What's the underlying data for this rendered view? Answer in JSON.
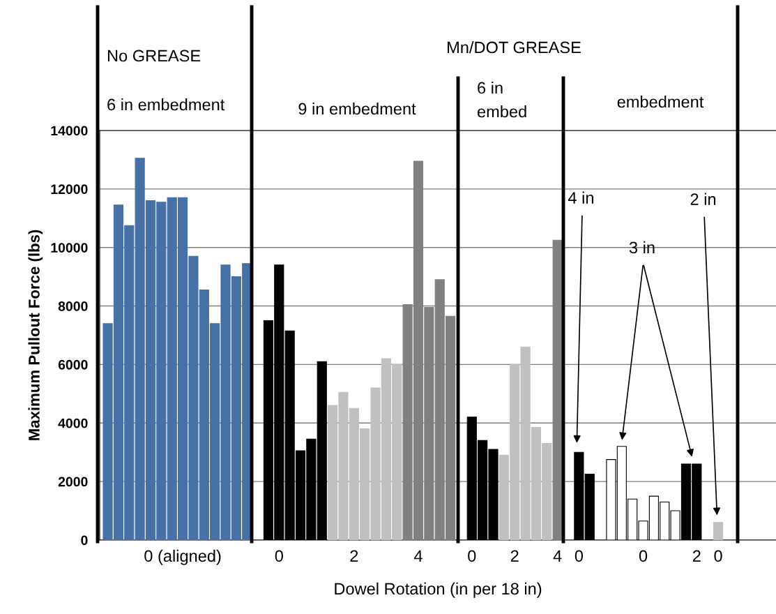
{
  "chart_data": {
    "type": "bar",
    "xlabel": "Dowel Rotation (in per 18 in)",
    "ylabel": "Maximum Pullout Force (lbs)",
    "categories": [
      null,
      null,
      null,
      null,
      null,
      null,
      null,
      "0 (aligned)",
      null,
      null,
      null,
      null,
      null,
      null,
      null,
      null,
      "0",
      null,
      null,
      null,
      null,
      null,
      null,
      "2",
      null,
      null,
      null,
      null,
      null,
      "4",
      null,
      null,
      null,
      null,
      "0",
      null,
      null,
      null,
      "2",
      null,
      null,
      null,
      "4",
      null,
      "0",
      null,
      null,
      null,
      null,
      null,
      "0",
      null,
      null,
      null,
      null,
      "2",
      null,
      "0",
      null,
      null,
      null,
      null,
      null
    ],
    "values": [
      7400,
      11450,
      10750,
      13050,
      11600,
      11550,
      11700,
      11700,
      9700,
      8550,
      7400,
      9400,
      9000,
      9450,
      null,
      7500,
      9400,
      7150,
      3050,
      3450,
      6100,
      4600,
      5050,
      4500,
      3800,
      5200,
      6200,
      6000,
      8050,
      12950,
      7950,
      8900,
      7650,
      null,
      4200,
      3400,
      3100,
      2900,
      6000,
      6600,
      3850,
      3300,
      10250,
      null,
      3000,
      2250,
      null,
      2750,
      3200,
      1400,
      650,
      1500,
      1300,
      1000,
      2600,
      2600,
      null,
      600,
      null,
      null,
      null,
      null,
      null
    ],
    "colors": [
      "#4671a6",
      "#4671a6",
      "#4671a6",
      "#4671a6",
      "#4671a6",
      "#4671a6",
      "#4671a6",
      "#4671a6",
      "#4671a6",
      "#4671a6",
      "#4671a6",
      "#4671a6",
      "#4671a6",
      "#4671a6",
      null,
      "#000000",
      "#000000",
      "#000000",
      "#000000",
      "#000000",
      "#000000",
      "#c0c0c0",
      "#c0c0c0",
      "#c0c0c0",
      "#c0c0c0",
      "#c0c0c0",
      "#c0c0c0",
      "#c0c0c0",
      "#808080",
      "#808080",
      "#808080",
      "#808080",
      "#808080",
      null,
      "#000000",
      "#000000",
      "#000000",
      "#c0c0c0",
      "#c0c0c0",
      "#c0c0c0",
      "#c0c0c0",
      "#c0c0c0",
      "#808080",
      null,
      "#000000",
      "#000000",
      null,
      "#ffffff",
      "#ffffff",
      "#ffffff",
      "#ffffff",
      "#ffffff",
      "#ffffff",
      "#ffffff",
      "#000000",
      "#000000",
      null,
      "#c0c0c0",
      null,
      null,
      null,
      null,
      null
    ],
    "ylim": [
      0,
      14000
    ],
    "yticks": [
      0,
      2000,
      4000,
      6000,
      8000,
      10000,
      12000,
      14000
    ],
    "grid": "y",
    "annotations": [
      "No GREASE",
      "6 in embedment",
      "Mn/DOT GREASE",
      "9 in embedment",
      "6 in\nembed",
      "embedment",
      "4 in",
      "3 in",
      "2 in"
    ]
  }
}
